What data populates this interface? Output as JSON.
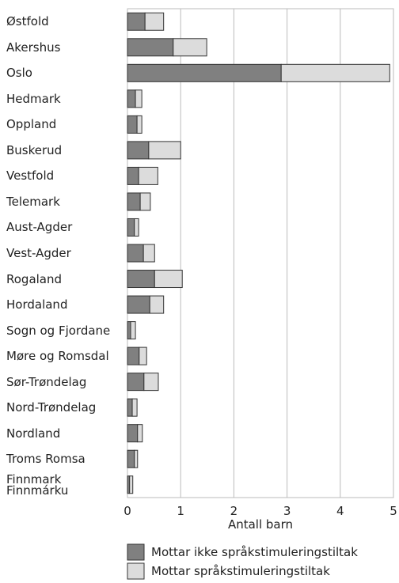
{
  "chart_data": {
    "type": "stacked_barh",
    "xlabel": "Antall barn",
    "categories": [
      "Østfold",
      "Akershus",
      "Oslo",
      "Hedmark",
      "Oppland",
      "Buskerud",
      "Vestfold",
      "Telemark",
      "Aust-Agder",
      "Vest-Agder",
      "Rogaland",
      "Hordaland",
      "Sogn og Fjordane",
      "Møre og Romsdal",
      "Sør-Trøndelag",
      "Nord-Trøndelag",
      "Nordland",
      "Troms Romsa",
      "Finnmark\nFinnmárku"
    ],
    "series": [
      {
        "name": "Mottar ikke språkstimuleringstiltak",
        "color": "#808080",
        "values": [
          0.33,
          0.86,
          2.89,
          0.15,
          0.18,
          0.4,
          0.21,
          0.24,
          0.13,
          0.3,
          0.51,
          0.42,
          0.06,
          0.22,
          0.31,
          0.09,
          0.19,
          0.13,
          0.04
        ]
      },
      {
        "name": "Mottar språkstimuleringstiltak",
        "color": "#dcdcdc",
        "values": [
          0.35,
          0.63,
          2.04,
          0.12,
          0.09,
          0.6,
          0.36,
          0.19,
          0.08,
          0.21,
          0.52,
          0.26,
          0.09,
          0.14,
          0.27,
          0.09,
          0.09,
          0.06,
          0.06
        ]
      }
    ],
    "xlim": [
      0,
      5
    ],
    "xticks": [
      0,
      1,
      2,
      3,
      4,
      5
    ],
    "grid": true,
    "legend": "bottom"
  }
}
